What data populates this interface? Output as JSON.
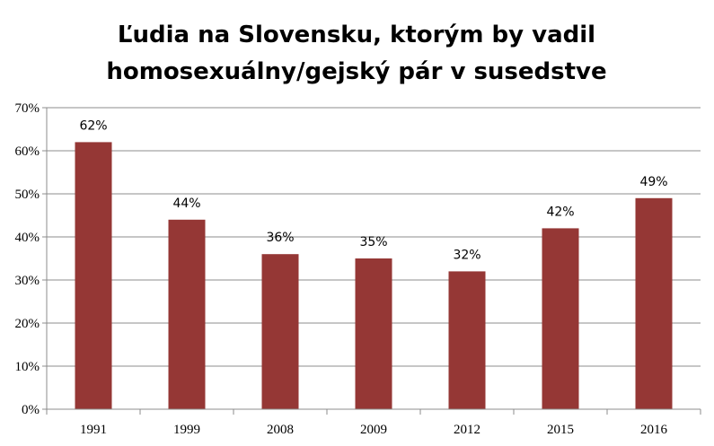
{
  "chart_data": {
    "type": "bar",
    "title_lines": [
      "Ľudia na Slovensku, ktorým by vadil",
      "homosexuálny/gejský pár v susedstve"
    ],
    "categories": [
      "1991",
      "1999",
      "2008",
      "2009",
      "2012",
      "2015",
      "2016"
    ],
    "values": [
      62,
      44,
      36,
      35,
      32,
      42,
      49
    ],
    "data_labels": [
      "62%",
      "44%",
      "36%",
      "35%",
      "32%",
      "42%",
      "49%"
    ],
    "y_ticks": [
      "0%",
      "10%",
      "20%",
      "30%",
      "40%",
      "50%",
      "60%",
      "70%"
    ],
    "ylim": [
      0,
      70
    ],
    "y_tick_step": 10,
    "grid": true,
    "legend": "none",
    "bar_color": "#953735"
  }
}
